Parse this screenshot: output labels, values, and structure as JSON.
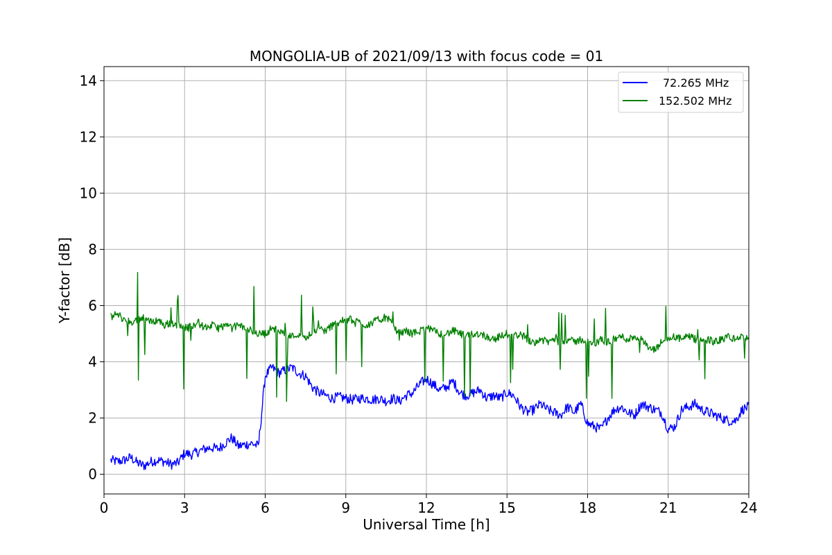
{
  "chart_data": {
    "type": "line",
    "title": "MONGOLIA-UB of 2021/09/13 with focus code = 01",
    "xlabel": "Universal Time [h]",
    "ylabel": "Y-factor [dB]",
    "xlim": [
      0,
      24
    ],
    "ylim": [
      -0.7,
      14.5
    ],
    "xticks": [
      0,
      3,
      6,
      9,
      12,
      15,
      18,
      21,
      24
    ],
    "yticks": [
      0,
      2,
      4,
      6,
      8,
      10,
      12,
      14
    ],
    "grid": true,
    "legend_position": "top-right",
    "series": [
      {
        "name": "72.265 MHz",
        "color": "#0000ff",
        "x": [
          0.25,
          0.5,
          0.75,
          1.0,
          1.25,
          1.5,
          1.75,
          2.0,
          2.25,
          2.5,
          2.75,
          3.0,
          3.25,
          3.5,
          3.75,
          4.0,
          4.25,
          4.5,
          4.75,
          5.0,
          5.25,
          5.5,
          5.75,
          6.0,
          6.25,
          6.5,
          6.75,
          7.0,
          7.25,
          7.5,
          7.75,
          8.0,
          8.25,
          8.5,
          8.75,
          9.0,
          9.25,
          9.5,
          9.75,
          10.0,
          10.25,
          10.5,
          10.75,
          11.0,
          11.25,
          11.5,
          11.75,
          12.0,
          12.25,
          12.5,
          12.75,
          13.0,
          13.25,
          13.5,
          13.75,
          14.0,
          14.25,
          14.5,
          14.75,
          15.0,
          15.25,
          15.5,
          15.75,
          16.0,
          16.25,
          16.5,
          16.75,
          17.0,
          17.25,
          17.5,
          17.75,
          18.0,
          18.25,
          18.5,
          18.75,
          19.0,
          19.25,
          19.5,
          19.75,
          20.0,
          20.25,
          20.5,
          20.75,
          21.0,
          21.25,
          21.5,
          21.75,
          22.0,
          22.25,
          22.5,
          22.75,
          23.0,
          23.25,
          23.5,
          23.75,
          24.0
        ],
        "y": [
          0.5,
          0.45,
          0.5,
          0.6,
          0.4,
          0.3,
          0.45,
          0.5,
          0.45,
          0.35,
          0.4,
          0.75,
          0.7,
          0.8,
          0.9,
          0.95,
          0.9,
          1.1,
          1.3,
          1.0,
          1.05,
          1.1,
          1.0,
          3.5,
          3.8,
          3.6,
          3.7,
          3.8,
          3.6,
          3.5,
          3.1,
          2.9,
          2.8,
          2.7,
          2.75,
          2.7,
          2.65,
          2.7,
          2.7,
          2.65,
          2.7,
          2.6,
          2.7,
          2.6,
          2.8,
          2.9,
          3.2,
          3.4,
          3.2,
          3.0,
          3.1,
          3.3,
          2.9,
          2.8,
          2.9,
          3.0,
          2.7,
          2.8,
          2.7,
          2.9,
          2.8,
          2.4,
          2.2,
          2.3,
          2.5,
          2.3,
          2.2,
          2.1,
          2.4,
          2.2,
          2.5,
          1.8,
          1.7,
          1.6,
          2.0,
          2.3,
          2.4,
          2.2,
          2.1,
          2.5,
          2.4,
          2.3,
          2.2,
          1.6,
          1.7,
          2.3,
          2.4,
          2.5,
          2.3,
          2.2,
          2.1,
          2.0,
          1.9,
          1.9,
          2.3,
          2.4
        ]
      },
      {
        "name": "152.502 MHz",
        "color": "#008000",
        "x": [
          0.25,
          0.5,
          0.75,
          1.0,
          1.25,
          1.5,
          1.75,
          2.0,
          2.25,
          2.5,
          2.75,
          3.0,
          3.25,
          3.5,
          3.75,
          4.0,
          4.25,
          4.5,
          4.75,
          5.0,
          5.25,
          5.5,
          5.75,
          6.0,
          6.25,
          6.5,
          6.75,
          7.0,
          7.25,
          7.5,
          7.75,
          8.0,
          8.25,
          8.5,
          8.75,
          9.0,
          9.25,
          9.5,
          9.75,
          10.0,
          10.25,
          10.5,
          10.75,
          11.0,
          11.25,
          11.5,
          11.75,
          12.0,
          12.25,
          12.5,
          12.75,
          13.0,
          13.25,
          13.5,
          13.75,
          14.0,
          14.25,
          14.5,
          14.75,
          15.0,
          15.25,
          15.5,
          15.75,
          16.0,
          16.25,
          16.5,
          16.75,
          17.0,
          17.25,
          17.5,
          17.75,
          18.0,
          18.25,
          18.5,
          18.75,
          19.0,
          19.25,
          19.5,
          19.75,
          20.0,
          20.25,
          20.5,
          20.75,
          21.0,
          21.25,
          21.5,
          21.75,
          22.0,
          22.25,
          22.5,
          22.75,
          23.0,
          23.25,
          23.5,
          23.75,
          24.0
        ],
        "y": [
          5.6,
          5.7,
          5.5,
          5.4,
          5.5,
          5.6,
          5.4,
          5.5,
          5.3,
          5.4,
          5.3,
          5.2,
          5.3,
          5.4,
          5.2,
          5.3,
          5.2,
          5.3,
          5.2,
          5.3,
          5.2,
          5.1,
          5.0,
          5.0,
          5.2,
          5.1,
          5.0,
          4.9,
          5.0,
          4.9,
          5.0,
          5.2,
          5.1,
          5.3,
          5.4,
          5.5,
          5.5,
          5.4,
          5.3,
          5.4,
          5.5,
          5.6,
          5.3,
          5.0,
          5.1,
          5.0,
          5.1,
          5.2,
          5.1,
          5.0,
          5.0,
          5.1,
          5.0,
          4.9,
          5.0,
          5.0,
          4.9,
          4.8,
          4.9,
          5.0,
          4.9,
          5.0,
          4.8,
          4.7,
          4.8,
          4.7,
          4.8,
          4.7,
          4.8,
          4.7,
          4.8,
          4.7,
          4.6,
          4.8,
          4.7,
          4.8,
          4.9,
          4.8,
          4.9,
          4.8,
          4.5,
          4.4,
          4.7,
          4.8,
          4.9,
          4.8,
          4.9,
          4.8,
          4.7,
          4.8,
          4.7,
          4.8,
          4.9,
          4.8,
          4.9,
          4.8
        ]
      }
    ]
  }
}
